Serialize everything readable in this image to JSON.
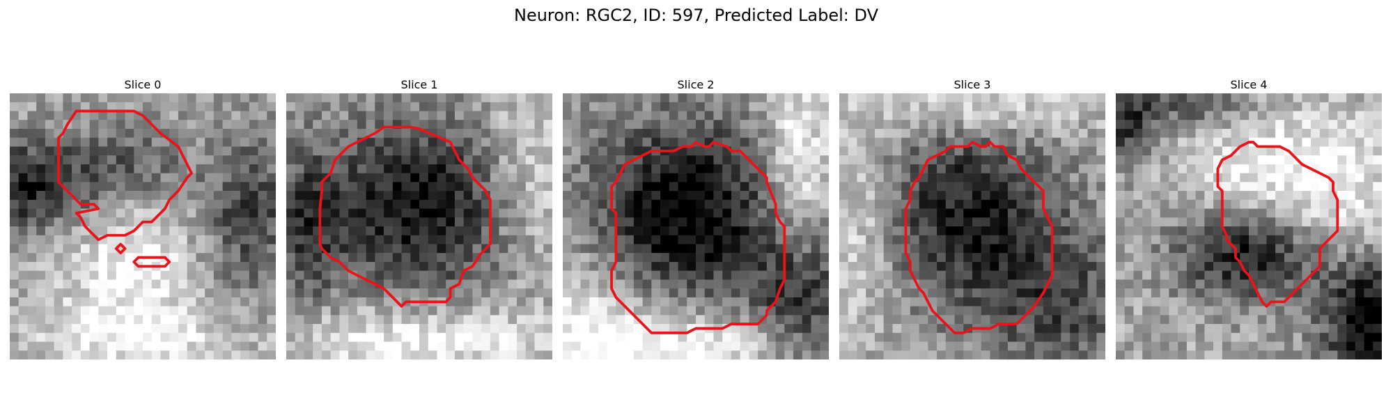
{
  "figure": {
    "title": "Neuron: RGC2, ID: 597, Predicted Label: DV"
  },
  "colors": {
    "contour": "#e8141c",
    "background": "#ffffff"
  },
  "slices": [
    {
      "title": "Slice 0",
      "seed": 11,
      "dark": [
        [
          0.08,
          0.35,
          0.22,
          0.18,
          0.55
        ],
        [
          0.45,
          0.28,
          0.22,
          0.18,
          0.35
        ],
        [
          0.9,
          0.45,
          0.18,
          0.3,
          0.4
        ]
      ],
      "bright": [
        [
          0.45,
          0.62,
          0.25,
          0.3,
          0.3
        ],
        [
          0.5,
          0.92,
          0.4,
          0.12,
          0.25
        ]
      ]
    },
    {
      "title": "Slice 1",
      "seed": 23,
      "dark": [
        [
          0.5,
          0.42,
          0.38,
          0.34,
          0.6
        ],
        [
          0.08,
          0.5,
          0.12,
          0.3,
          0.35
        ]
      ],
      "bright": [
        [
          0.5,
          0.92,
          0.5,
          0.12,
          0.35
        ],
        [
          0.92,
          0.3,
          0.2,
          0.35,
          0.25
        ]
      ]
    },
    {
      "title": "Slice 2",
      "seed": 37,
      "dark": [
        [
          0.45,
          0.45,
          0.36,
          0.36,
          0.7
        ],
        [
          0.9,
          0.8,
          0.2,
          0.25,
          0.45
        ]
      ],
      "bright": [
        [
          0.5,
          0.95,
          0.45,
          0.15,
          0.35
        ],
        [
          0.88,
          0.25,
          0.12,
          0.3,
          0.35
        ],
        [
          0.1,
          0.88,
          0.3,
          0.3,
          0.3
        ]
      ]
    },
    {
      "title": "Slice 3",
      "seed": 51,
      "dark": [
        [
          0.48,
          0.45,
          0.34,
          0.36,
          0.55
        ],
        [
          0.85,
          0.8,
          0.3,
          0.3,
          0.35
        ]
      ],
      "bright": [
        [
          0.5,
          0.05,
          0.4,
          0.12,
          0.3
        ],
        [
          0.08,
          0.5,
          0.15,
          0.35,
          0.25
        ]
      ]
    },
    {
      "title": "Slice 4",
      "seed": 67,
      "dark": [
        [
          0.5,
          0.6,
          0.28,
          0.18,
          0.6
        ],
        [
          0.95,
          0.85,
          0.18,
          0.25,
          0.7
        ],
        [
          0.05,
          0.12,
          0.1,
          0.15,
          0.45
        ],
        [
          0.3,
          0.05,
          0.25,
          0.1,
          0.3
        ]
      ],
      "bright": [
        [
          0.55,
          0.3,
          0.3,
          0.25,
          0.3
        ],
        [
          0.85,
          0.4,
          0.2,
          0.3,
          0.25
        ]
      ]
    }
  ]
}
